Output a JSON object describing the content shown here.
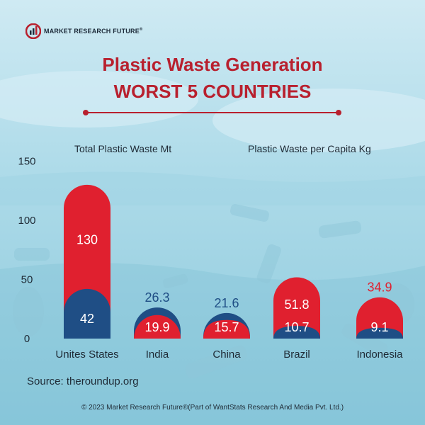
{
  "brand": {
    "name": "MARKET RESEARCH FUTURE",
    "mark": "®"
  },
  "title": {
    "line1": "Plastic Waste Generation",
    "line2": "WORST 5 COUNTRIES"
  },
  "legend": {
    "left": "Total Plastic Waste Mt",
    "right": "Plastic Waste per Capita Kg"
  },
  "source": "Source: theroundup.org",
  "footer": "© 2023 Market Research Future®(Part of WantStats Research And Media Pvt. Ltd.)",
  "colors": {
    "red": "#e0202f",
    "blue": "#1f4e85",
    "title": "#b8202e",
    "text": "#1f2b36"
  },
  "chart_data": {
    "type": "bar",
    "categories": [
      "Unites States",
      "India",
      "China",
      "Brazil",
      "Indonesia"
    ],
    "series": [
      {
        "name": "Total Plastic Waste Mt",
        "values": [
          42,
          26.3,
          21.6,
          10.7,
          9.1
        ]
      },
      {
        "name": "Plastic Waste per Capita Kg",
        "values": [
          130,
          19.9,
          15.7,
          51.8,
          34.9
        ]
      }
    ],
    "value_labels": {
      "Total Plastic Waste Mt": [
        "42",
        "26.3",
        "21.6",
        "10.7",
        "9.1"
      ],
      "Plastic Waste per Capita Kg": [
        "130",
        "19.9",
        "15.7",
        "51.8",
        "34.9"
      ]
    },
    "yticks": [
      "0",
      "50",
      "100",
      "150"
    ],
    "ylim": [
      0,
      150
    ]
  }
}
